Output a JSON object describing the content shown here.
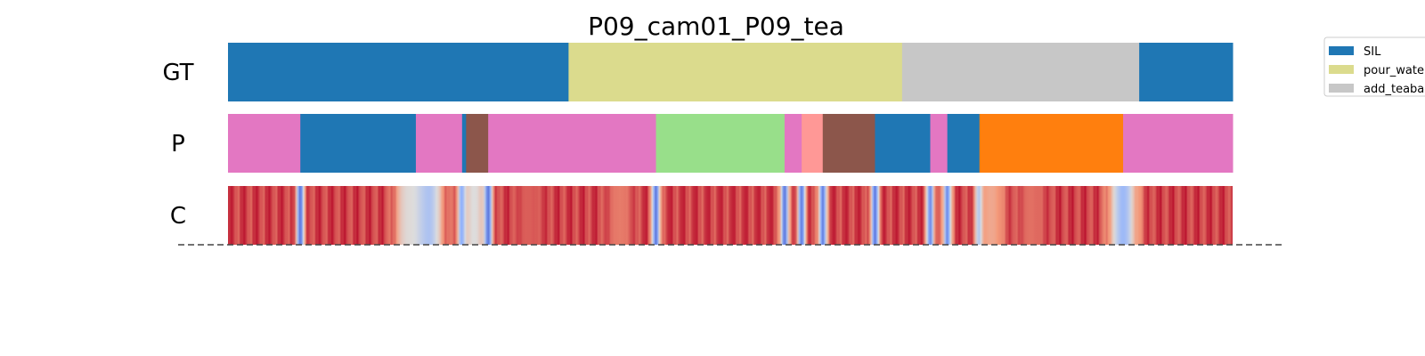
{
  "chart_data": {
    "type": "segmentation",
    "title": "P09_cam01_P09_tea",
    "rows": [
      {
        "label": "GT",
        "segments": [
          {
            "start": 0.0,
            "end": 0.339,
            "color": "#1f77b4"
          },
          {
            "start": 0.339,
            "end": 0.671,
            "color": "#dbdb8d"
          },
          {
            "start": 0.671,
            "end": 0.907,
            "color": "#c7c7c7"
          },
          {
            "start": 0.907,
            "end": 1.0,
            "color": "#1f77b4"
          }
        ]
      },
      {
        "label": "P",
        "segments": [
          {
            "start": 0.0,
            "end": 0.072,
            "color": "#e377c2"
          },
          {
            "start": 0.072,
            "end": 0.187,
            "color": "#1f77b4"
          },
          {
            "start": 0.187,
            "end": 0.233,
            "color": "#e377c2"
          },
          {
            "start": 0.233,
            "end": 0.237,
            "color": "#1f77b4"
          },
          {
            "start": 0.237,
            "end": 0.259,
            "color": "#8c564b"
          },
          {
            "start": 0.259,
            "end": 0.426,
            "color": "#e377c2"
          },
          {
            "start": 0.426,
            "end": 0.554,
            "color": "#98df8a"
          },
          {
            "start": 0.554,
            "end": 0.571,
            "color": "#e377c2"
          },
          {
            "start": 0.571,
            "end": 0.592,
            "color": "#ff9896"
          },
          {
            "start": 0.592,
            "end": 0.644,
            "color": "#8c564b"
          },
          {
            "start": 0.644,
            "end": 0.699,
            "color": "#1f77b4"
          },
          {
            "start": 0.699,
            "end": 0.716,
            "color": "#e377c2"
          },
          {
            "start": 0.716,
            "end": 0.748,
            "color": "#1f77b4"
          },
          {
            "start": 0.748,
            "end": 0.891,
            "color": "#ff7f0e"
          },
          {
            "start": 0.891,
            "end": 1.0,
            "color": "#e377c2"
          }
        ]
      },
      {
        "label": "C",
        "colormap": "coolwarm",
        "confidence_dips": [
          {
            "pos": 0.072,
            "value": 0.1
          },
          {
            "pos": 0.18,
            "value": 0.5
          },
          {
            "pos": 0.19,
            "value": 0.55
          },
          {
            "pos": 0.2,
            "value": 0.35
          },
          {
            "pos": 0.233,
            "value": 0.08
          },
          {
            "pos": 0.245,
            "value": 0.5
          },
          {
            "pos": 0.259,
            "value": 0.1
          },
          {
            "pos": 0.3,
            "value": 0.85
          },
          {
            "pos": 0.39,
            "value": 0.8
          },
          {
            "pos": 0.426,
            "value": 0.1
          },
          {
            "pos": 0.554,
            "value": 0.1
          },
          {
            "pos": 0.571,
            "value": 0.12
          },
          {
            "pos": 0.592,
            "value": 0.12
          },
          {
            "pos": 0.644,
            "value": 0.1
          },
          {
            "pos": 0.699,
            "value": 0.15
          },
          {
            "pos": 0.716,
            "value": 0.15
          },
          {
            "pos": 0.748,
            "value": 0.15
          },
          {
            "pos": 0.76,
            "value": 0.7
          },
          {
            "pos": 0.8,
            "value": 0.82
          },
          {
            "pos": 0.891,
            "value": 0.3
          }
        ]
      }
    ],
    "legend": [
      {
        "label": "SIL",
        "color": "#1f77b4"
      },
      {
        "label": "pour_water",
        "color": "#dbdb8d"
      },
      {
        "label": "add_teabag",
        "color": "#c7c7c7"
      }
    ],
    "legend_placement": "top-right (clipped)",
    "baseline_dashed": true
  }
}
